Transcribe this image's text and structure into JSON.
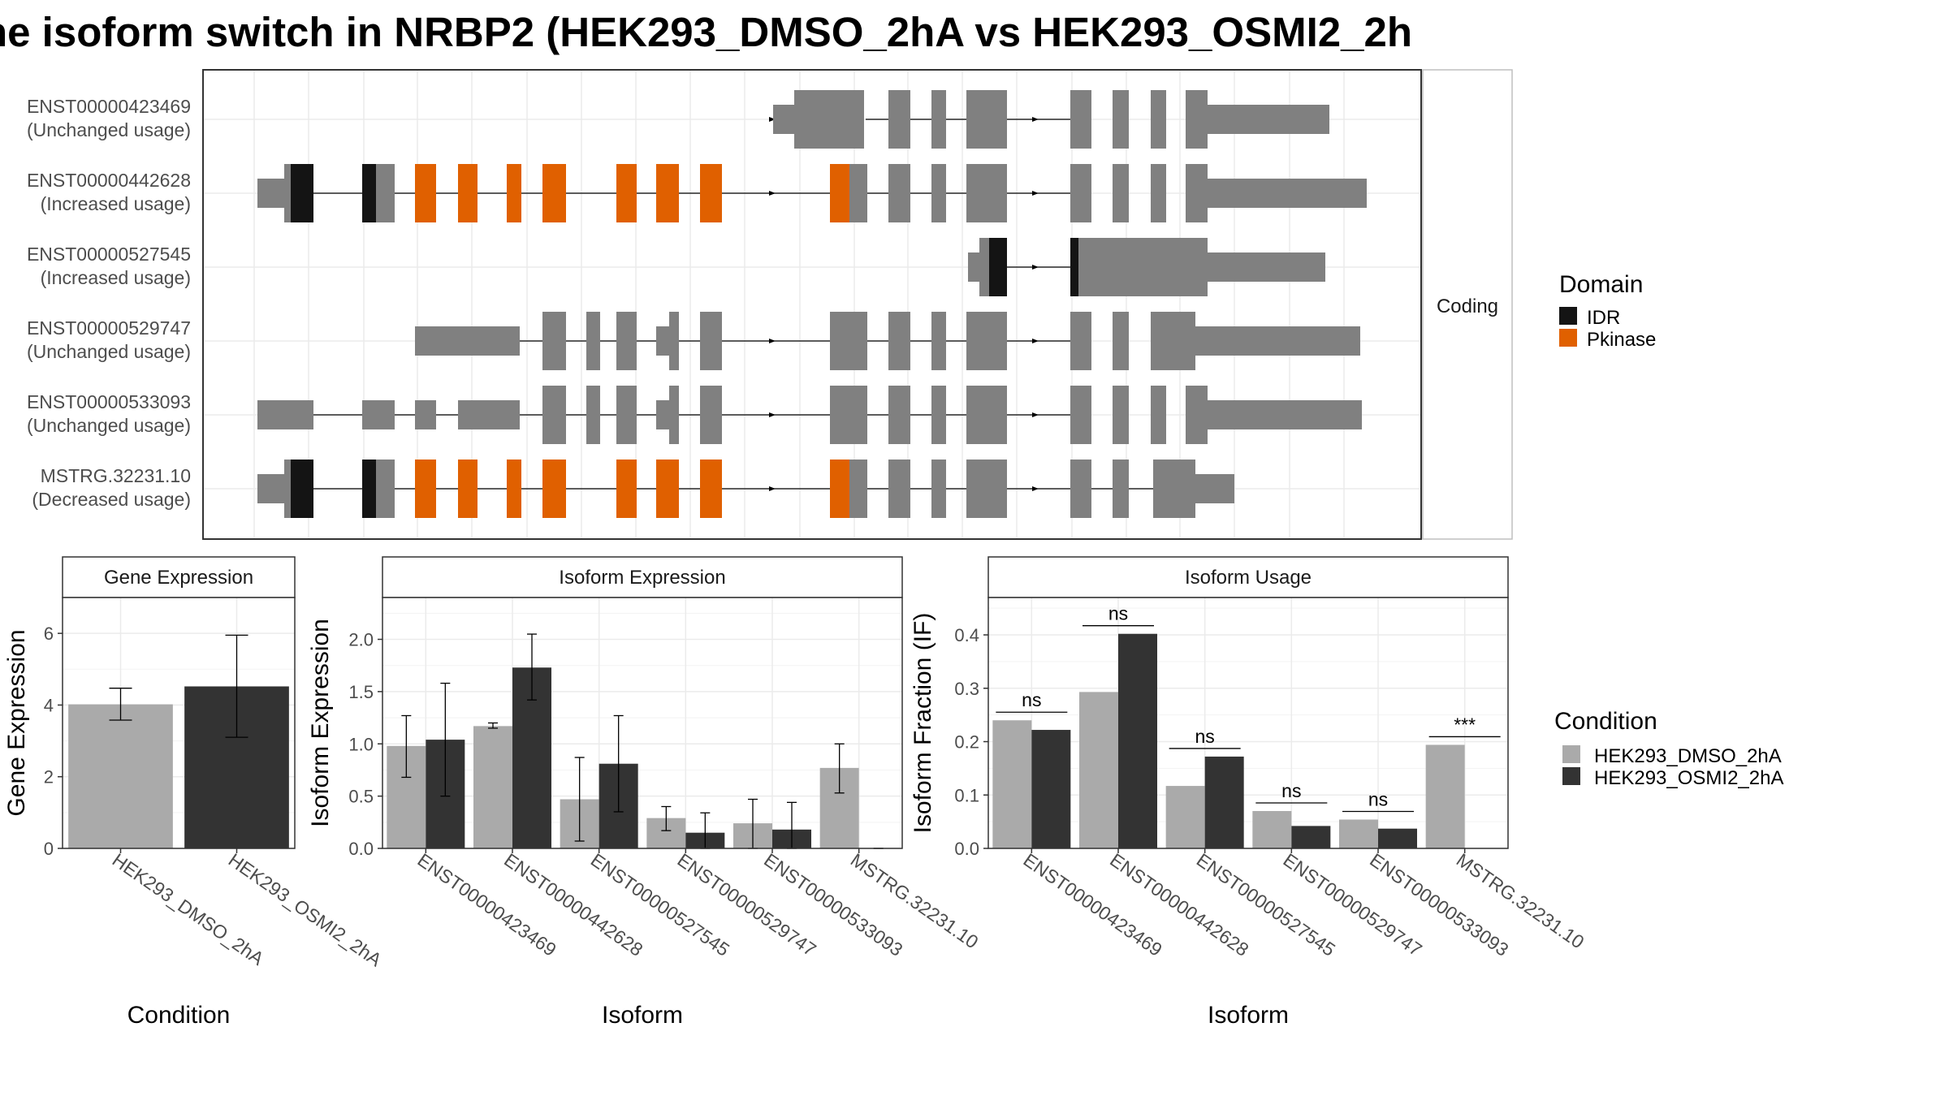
{
  "title": "he isoform switch in NRBP2 (HEK293_DMSO_2hA vs HEK293_OSMI2_2h",
  "colors": {
    "gray": "#808080",
    "idr": "#141414",
    "pkinase": "#e06000",
    "dmso": "#aaaaaa",
    "osmi": "#333333",
    "grid": "#ebebeb",
    "strip": "#ffffff",
    "border": "#333333"
  },
  "structure": {
    "strip_label": "Coding",
    "isoforms": [
      {
        "id": "ENST00000423469",
        "usage": "(Unchanged usage)"
      },
      {
        "id": "ENST00000442628",
        "usage": "(Increased usage)"
      },
      {
        "id": "ENST00000527545",
        "usage": "(Increased usage)"
      },
      {
        "id": "ENST00000529747",
        "usage": "(Unchanged usage)"
      },
      {
        "id": "ENST00000533093",
        "usage": "(Unchanged usage)"
      },
      {
        "id": "MSTRG.32231.10",
        "usage": "(Decreased usage)"
      }
    ]
  },
  "domain_legend": {
    "title": "Domain",
    "items": [
      {
        "label": "IDR",
        "color": "#141414"
      },
      {
        "label": "Pkinase",
        "color": "#e06000"
      }
    ]
  },
  "condition_legend": {
    "title": "Condition",
    "items": [
      {
        "label": "HEK293_DMSO_2hA",
        "color": "#aaaaaa"
      },
      {
        "label": "HEK293_OSMI2_2hA",
        "color": "#333333"
      }
    ]
  },
  "chart_data": [
    {
      "type": "bar",
      "panel": "Gene Expression",
      "xlabel": "Condition",
      "ylabel": "Gene Expression",
      "categories": [
        "HEK293_DMSO_2hA",
        "HEK293_OSMI2_2hA"
      ],
      "values": [
        4.02,
        4.52
      ],
      "error_low": [
        3.58,
        3.1
      ],
      "error_high": [
        4.47,
        5.95
      ],
      "ylim": [
        0,
        7
      ],
      "yticks": [
        0,
        2,
        4,
        6
      ],
      "ytick_labels": [
        "0",
        "2",
        "4",
        "6"
      ]
    },
    {
      "type": "bar",
      "panel": "Isoform Expression",
      "xlabel": "Isoform",
      "ylabel": "Isoform Expression",
      "categories": [
        "ENST00000423469",
        "ENST00000442628",
        "ENST00000527545",
        "ENST00000529747",
        "ENST00000533093",
        "MSTRG.32231.10"
      ],
      "series": [
        {
          "values": [
            0.98,
            1.17,
            0.47,
            0.29,
            0.24,
            0.77
          ],
          "error_low": [
            0.68,
            1.15,
            0.07,
            0.17,
            0.0,
            0.53
          ],
          "error_high": [
            1.27,
            1.2,
            0.87,
            0.4,
            0.47,
            1.0
          ]
        },
        {
          "values": [
            1.04,
            1.73,
            0.81,
            0.15,
            0.18,
            0.0
          ],
          "error_low": [
            0.5,
            1.42,
            0.35,
            0.0,
            0.0,
            0.0
          ],
          "error_high": [
            1.58,
            2.05,
            1.27,
            0.34,
            0.44,
            0.0
          ]
        }
      ],
      "ylim": [
        0,
        2.4
      ],
      "yticks": [
        0,
        0.5,
        1,
        1.5,
        2
      ],
      "ytick_labels": [
        "0.0",
        "0.5",
        "1.0",
        "1.5",
        "2.0"
      ]
    },
    {
      "type": "bar",
      "panel": "Isoform Usage",
      "xlabel": "Isoform",
      "ylabel": "Isoform Fraction (IF)",
      "categories": [
        "ENST00000423469",
        "ENST00000442628",
        "ENST00000527545",
        "ENST00000529747",
        "ENST00000533093",
        "MSTRG.32231.10"
      ],
      "series": [
        {
          "values": [
            0.24,
            0.293,
            0.117,
            0.07,
            0.054,
            0.194
          ]
        },
        {
          "values": [
            0.222,
            0.402,
            0.172,
            0.042,
            0.037,
            0.0
          ]
        }
      ],
      "significance": [
        "ns",
        "ns",
        "ns",
        "ns",
        "ns",
        "***"
      ],
      "ylim": [
        0,
        0.47
      ],
      "yticks": [
        0,
        0.1,
        0.2,
        0.3,
        0.4
      ],
      "ytick_labels": [
        "0.0",
        "0.1",
        "0.2",
        "0.3",
        "0.4"
      ]
    }
  ]
}
